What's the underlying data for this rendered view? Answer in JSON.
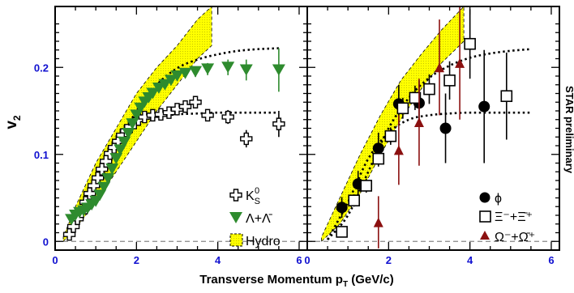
{
  "figure": {
    "ylabel_main": "v",
    "ylabel_sub": "2",
    "xlabel_main": "Transverse Momentum p",
    "xlabel_sub": "T",
    "xlabel_unit": " (GeV/c)",
    "side_label": "STAR preliminary",
    "ytick_labels": [
      "0",
      "0.1",
      "0.2"
    ],
    "xtick_labels": [
      "0",
      "2",
      "4",
      "6"
    ]
  },
  "legend_left": [
    {
      "symbol": "open-cross",
      "text": "K",
      "sub": "S",
      "sup": "0"
    },
    {
      "symbol": "filled-triangle-down",
      "text": "Λ+Λ̄"
    },
    {
      "symbol": "hydro-box",
      "text": "Hydro"
    }
  ],
  "legend_right": [
    {
      "symbol": "filled-circle",
      "text": "ϕ"
    },
    {
      "symbol": "open-square",
      "text": "Ξ⁻+Ξ̄⁺"
    },
    {
      "symbol": "filled-triangle-up",
      "text": "Ω⁻+Ω̄⁺"
    }
  ],
  "colors": {
    "axis_tick_labels": "#1010d0",
    "lambda": "#2e8b2e",
    "omega": "#8b1010",
    "hydro_fill": "#ffff00",
    "fit_curve": "#000000",
    "zero_line": "#888888"
  },
  "chart_data": [
    {
      "type": "scatter",
      "panel": "left",
      "xlim": [
        0,
        6.2
      ],
      "ylim": [
        -0.01,
        0.27
      ],
      "grid": false,
      "legend_position": "bottom-right",
      "series": [
        {
          "name": "K_S^0",
          "marker": "open-cross",
          "x": [
            0.35,
            0.45,
            0.55,
            0.65,
            0.75,
            0.85,
            0.95,
            1.05,
            1.15,
            1.25,
            1.35,
            1.45,
            1.55,
            1.65,
            1.75,
            1.85,
            1.95,
            2.05,
            2.2,
            2.4,
            2.6,
            2.8,
            3.0,
            3.2,
            3.45,
            3.75,
            4.25,
            4.7,
            5.5
          ],
          "y": [
            0.008,
            0.017,
            0.026,
            0.034,
            0.045,
            0.055,
            0.064,
            0.073,
            0.083,
            0.092,
            0.101,
            0.108,
            0.115,
            0.122,
            0.127,
            0.132,
            0.136,
            0.14,
            0.143,
            0.145,
            0.146,
            0.148,
            0.152,
            0.155,
            0.16,
            0.145,
            0.143,
            0.118,
            0.135
          ],
          "yerr": [
            0.002,
            0.002,
            0.002,
            0.002,
            0.002,
            0.002,
            0.002,
            0.002,
            0.002,
            0.002,
            0.002,
            0.002,
            0.002,
            0.002,
            0.002,
            0.002,
            0.002,
            0.002,
            0.003,
            0.003,
            0.003,
            0.003,
            0.004,
            0.004,
            0.005,
            0.006,
            0.008,
            0.01,
            0.015
          ]
        },
        {
          "name": "Λ+Λ̄",
          "marker": "filled-triangle-down",
          "x": [
            0.4,
            0.5,
            0.6,
            0.7,
            0.8,
            0.9,
            1.0,
            1.1,
            1.2,
            1.3,
            1.4,
            1.5,
            1.6,
            1.7,
            1.8,
            1.9,
            2.0,
            2.1,
            2.2,
            2.3,
            2.4,
            2.55,
            2.7,
            2.85,
            3.0,
            3.2,
            3.45,
            3.75,
            4.25,
            4.7,
            5.5
          ],
          "y": [
            0.025,
            0.03,
            0.033,
            0.035,
            0.038,
            0.042,
            0.046,
            0.053,
            0.062,
            0.072,
            0.083,
            0.095,
            0.105,
            0.114,
            0.124,
            0.135,
            0.145,
            0.153,
            0.16,
            0.165,
            0.17,
            0.176,
            0.18,
            0.185,
            0.19,
            0.193,
            0.195,
            0.198,
            0.2,
            0.197,
            0.197
          ],
          "yerr": [
            0.003,
            0.003,
            0.003,
            0.003,
            0.003,
            0.003,
            0.003,
            0.003,
            0.003,
            0.003,
            0.003,
            0.003,
            0.003,
            0.003,
            0.003,
            0.003,
            0.003,
            0.003,
            0.003,
            0.003,
            0.003,
            0.003,
            0.004,
            0.004,
            0.004,
            0.005,
            0.006,
            0.007,
            0.009,
            0.012,
            0.025
          ]
        }
      ],
      "hydro_band": {
        "name": "Hydro",
        "x": [
          0.2,
          0.5,
          1.0,
          1.5,
          2.0,
          2.5,
          3.0,
          3.5,
          3.85
        ],
        "y_low": [
          0.0,
          0.015,
          0.045,
          0.08,
          0.115,
          0.15,
          0.18,
          0.21,
          0.225
        ],
        "y_high": [
          0.005,
          0.04,
          0.09,
          0.13,
          0.17,
          0.2,
          0.225,
          0.255,
          0.27
        ]
      },
      "fit_curves": [
        {
          "asymptote": 0.222,
          "x": [
            0.3,
            1.0,
            1.5,
            2.0,
            2.5,
            3.0,
            3.5,
            4.0,
            4.5,
            5.0,
            5.5
          ],
          "y": [
            0.005,
            0.055,
            0.105,
            0.15,
            0.18,
            0.199,
            0.209,
            0.215,
            0.219,
            0.221,
            0.222
          ]
        },
        {
          "asymptote": 0.148,
          "x": [
            0.3,
            1.0,
            1.5,
            2.0,
            2.5,
            3.0,
            3.5,
            4.0,
            4.5,
            5.0,
            5.5
          ],
          "y": [
            0.005,
            0.07,
            0.11,
            0.135,
            0.143,
            0.146,
            0.147,
            0.148,
            0.148,
            0.148,
            0.148
          ]
        }
      ]
    },
    {
      "type": "scatter",
      "panel": "right",
      "xlim": [
        0,
        6.2
      ],
      "ylim": [
        -0.01,
        0.27
      ],
      "grid": false,
      "legend_position": "bottom-right",
      "series": [
        {
          "name": "ϕ",
          "marker": "filled-circle",
          "x": [
            0.85,
            1.25,
            1.75,
            2.25,
            2.75,
            3.4,
            4.35
          ],
          "y": [
            0.039,
            0.066,
            0.107,
            0.158,
            0.159,
            0.13,
            0.155
          ],
          "yerr": [
            0.012,
            0.015,
            0.018,
            0.022,
            0.026,
            0.04,
            0.065
          ]
        },
        {
          "name": "Ξ⁻+Ξ̄⁺",
          "marker": "open-square",
          "x": [
            0.85,
            1.15,
            1.45,
            1.75,
            2.05,
            2.35,
            2.65,
            3.0,
            3.5,
            4.0,
            4.9
          ],
          "y": [
            0.011,
            0.047,
            0.064,
            0.095,
            0.121,
            0.153,
            0.165,
            0.175,
            0.185,
            0.227,
            0.167
          ],
          "yerr": [
            0.006,
            0.007,
            0.008,
            0.009,
            0.01,
            0.012,
            0.014,
            0.017,
            0.022,
            0.04,
            0.05
          ]
        },
        {
          "name": "Ω⁻+Ω̄⁺",
          "marker": "filled-triangle-up",
          "x": [
            1.75,
            2.25,
            2.75,
            3.25,
            3.75
          ],
          "y": [
            0.022,
            0.105,
            0.137,
            0.2,
            0.205
          ],
          "yerr": [
            0.03,
            0.04,
            0.05,
            0.055,
            0.065
          ]
        }
      ],
      "hydro_band": {
        "name": "Hydro",
        "x": [
          0.35,
          0.8,
          1.3,
          1.8,
          2.3,
          2.8,
          3.3,
          3.85
        ],
        "y_low": [
          0.0,
          0.02,
          0.055,
          0.1,
          0.14,
          0.175,
          0.205,
          0.23
        ],
        "y_high": [
          0.005,
          0.05,
          0.1,
          0.145,
          0.185,
          0.215,
          0.243,
          0.27
        ]
      },
      "fit_curves": [
        {
          "asymptote": 0.222,
          "x": [
            0.5,
            1.0,
            1.5,
            2.0,
            2.5,
            3.0,
            3.5,
            4.0,
            4.5,
            5.0,
            5.5
          ],
          "y": [
            0.002,
            0.03,
            0.08,
            0.13,
            0.165,
            0.188,
            0.202,
            0.211,
            0.216,
            0.219,
            0.221
          ]
        },
        {
          "asymptote": 0.148,
          "x": [
            0.5,
            1.0,
            1.5,
            2.0,
            2.5,
            3.0,
            3.5,
            4.0,
            4.5,
            5.0,
            5.5
          ],
          "y": [
            0.002,
            0.045,
            0.095,
            0.125,
            0.14,
            0.145,
            0.147,
            0.148,
            0.148,
            0.148,
            0.148
          ]
        }
      ]
    }
  ]
}
